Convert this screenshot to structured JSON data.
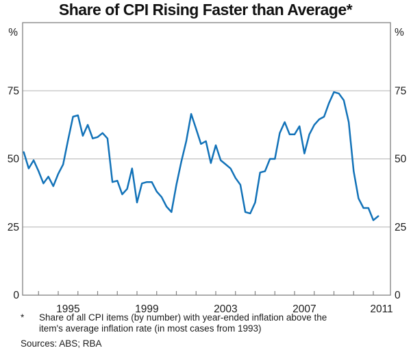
{
  "title": "Share of CPI Rising Faster than Average*",
  "percent_sign_left": "%",
  "percent_sign_right": "%",
  "footnote": {
    "marker": "*",
    "line1": "Share of all CPI items (by number) with year-ended inflation above the",
    "line2": "item's average inflation rate (in most cases from 1993)"
  },
  "sources": "Sources: ABS; RBA",
  "colors": {
    "line": "#1272b8",
    "grid": "#b3b3b3",
    "frame": "#808080",
    "text": "#1a1a1a"
  },
  "chart_data": {
    "type": "line",
    "title": "Share of CPI Rising Faster than Average*",
    "ylabel": "%",
    "ylim": [
      0,
      100
    ],
    "yticks": [
      0,
      25,
      50,
      75
    ],
    "grid": true,
    "legend": "none",
    "frequency": "quarterly",
    "x_start": "1993Q1",
    "x_end": "2011Q1",
    "x_tick_years": [
      1995,
      1999,
      2003,
      2007,
      2011
    ],
    "series": [
      {
        "name": "Share of CPI items with year-ended inflation above item average (%)",
        "values": [
          52.5,
          46.5,
          49.5,
          45.5,
          41,
          43.5,
          40,
          44.5,
          48,
          57,
          65.5,
          66,
          58.5,
          62.5,
          57.5,
          58,
          59.5,
          57.5,
          41.5,
          42,
          37,
          39,
          46.5,
          34,
          41,
          41.5,
          41.5,
          38,
          36,
          32.5,
          30.5,
          40.5,
          49,
          56.5,
          66.5,
          61,
          55.5,
          56.5,
          48.5,
          55,
          49.5,
          48,
          46.5,
          43,
          40.5,
          30.5,
          30,
          34,
          45,
          45.5,
          50,
          50,
          59.5,
          63.5,
          59,
          59,
          62,
          52,
          59,
          62.5,
          64.5,
          65.5,
          70.5,
          74.5,
          74,
          71.5,
          63.5,
          45.5,
          35.5,
          32,
          32,
          27.5,
          29
        ]
      }
    ]
  }
}
